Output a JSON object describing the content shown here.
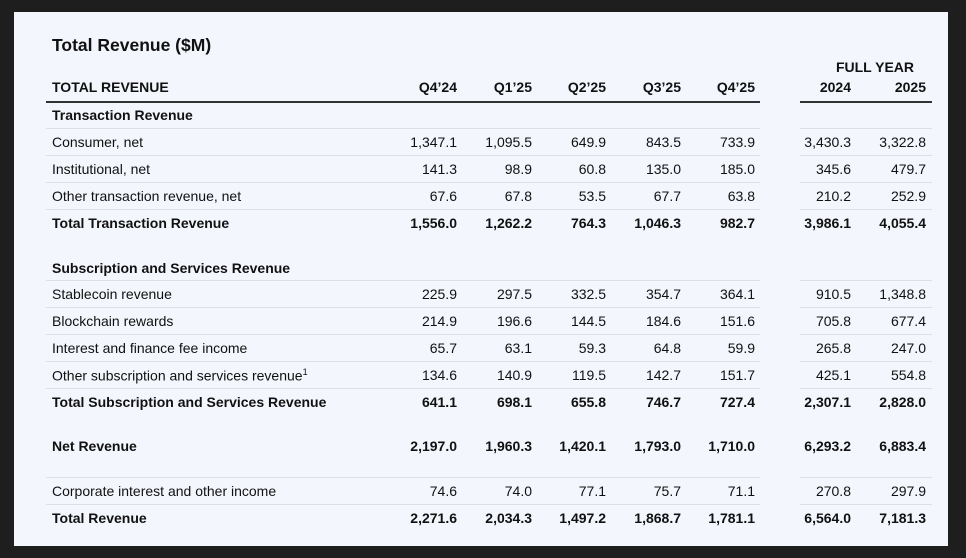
{
  "title": "Total Revenue ($M)",
  "full_year_label": "FULL YEAR",
  "header": {
    "label": "TOTAL REVENUE",
    "columns": [
      "Q4’24",
      "Q1’25",
      "Q2’25",
      "Q3’25",
      "Q4’25",
      "2024",
      "2025"
    ]
  },
  "rows": [
    {
      "label": "Transaction Revenue",
      "values": []
    },
    {
      "label": "Consumer, net",
      "values": [
        "1,347.1",
        "1,095.5",
        "649.9",
        "843.5",
        "733.9",
        "3,430.3",
        "3,322.8"
      ]
    },
    {
      "label": "Institutional, net",
      "values": [
        "141.3",
        "98.9",
        "60.8",
        "135.0",
        "185.0",
        "345.6",
        "479.7"
      ]
    },
    {
      "label": "Other transaction revenue, net",
      "values": [
        "67.6",
        "67.8",
        "53.5",
        "67.7",
        "63.8",
        "210.2",
        "252.9"
      ]
    },
    {
      "label": "Total Transaction Revenue",
      "values": [
        "1,556.0",
        "1,262.2",
        "764.3",
        "1,046.3",
        "982.7",
        "3,986.1",
        "4,055.4"
      ]
    },
    {
      "label": "Subscription and Services Revenue",
      "values": []
    },
    {
      "label": "Stablecoin revenue",
      "values": [
        "225.9",
        "297.5",
        "332.5",
        "354.7",
        "364.1",
        "910.5",
        "1,348.8"
      ]
    },
    {
      "label": "Blockchain rewards",
      "values": [
        "214.9",
        "196.6",
        "144.5",
        "184.6",
        "151.6",
        "705.8",
        "677.4"
      ]
    },
    {
      "label": "Interest and finance fee income",
      "values": [
        "65.7",
        "63.1",
        "59.3",
        "64.8",
        "59.9",
        "265.8",
        "247.0"
      ]
    },
    {
      "label": "Other subscription and services revenue",
      "footnote": "1",
      "values": [
        "134.6",
        "140.9",
        "119.5",
        "142.7",
        "151.7",
        "425.1",
        "554.8"
      ]
    },
    {
      "label": "Total Subscription and Services Revenue",
      "values": [
        "641.1",
        "698.1",
        "655.8",
        "746.7",
        "727.4",
        "2,307.1",
        "2,828.0"
      ]
    },
    {
      "label": "Net Revenue",
      "values": [
        "2,197.0",
        "1,960.3",
        "1,420.1",
        "1,793.0",
        "1,710.0",
        "6,293.2",
        "6,883.4"
      ]
    },
    {
      "label": "Corporate interest and other income",
      "values": [
        "74.6",
        "74.0",
        "77.1",
        "75.7",
        "71.1",
        "270.8",
        "297.9"
      ]
    },
    {
      "label": "Total Revenue",
      "values": [
        "2,271.6",
        "2,034.3",
        "1,497.2",
        "1,868.7",
        "1,781.1",
        "6,564.0",
        "7,181.3"
      ]
    }
  ]
}
